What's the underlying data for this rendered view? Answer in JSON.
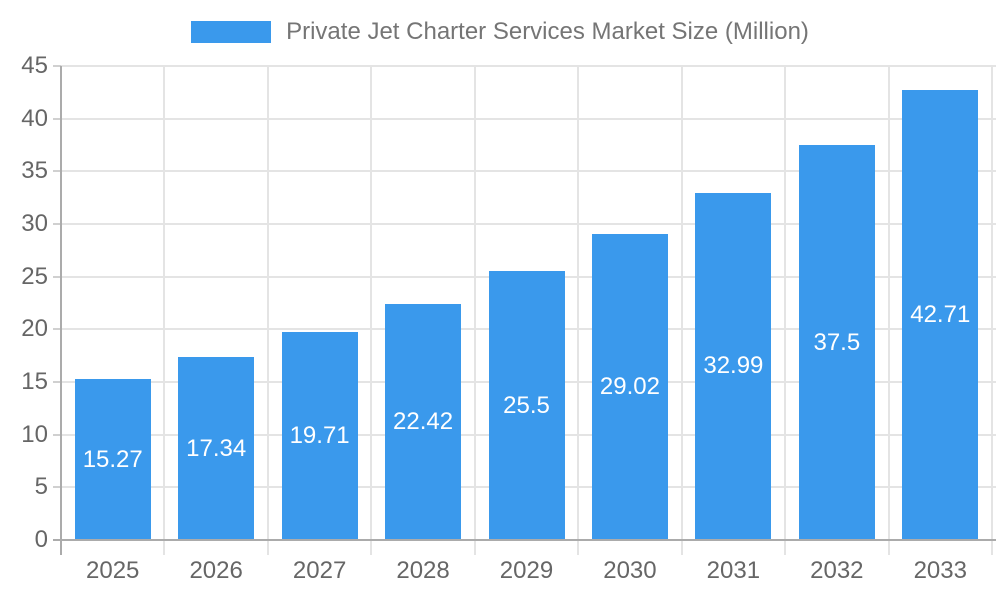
{
  "chart_data": {
    "type": "bar",
    "title": "Private Jet Charter Services Market Size (Million)",
    "categories": [
      "2025",
      "2026",
      "2027",
      "2028",
      "2029",
      "2030",
      "2031",
      "2032",
      "2033"
    ],
    "values": [
      15.27,
      17.34,
      19.71,
      22.42,
      25.5,
      29.02,
      32.99,
      37.5,
      42.71
    ],
    "value_labels": [
      "15.27",
      "17.34",
      "19.71",
      "22.42",
      "25.5",
      "29.02",
      "32.99",
      "37.5",
      "42.71"
    ],
    "xlabel": "",
    "ylabel": "",
    "ylim": [
      0,
      45
    ],
    "y_ticks": [
      0,
      5,
      10,
      15,
      20,
      25,
      30,
      35,
      40,
      45
    ],
    "grid": true,
    "legend_position": "top-center",
    "colors": {
      "bar": "#3A99EC",
      "grid": "#E4E4E4",
      "axis": "#ABABAB",
      "tick": "#D0D0D0",
      "axis_text": "#666666",
      "legend_text": "#757575",
      "bar_label_text": "#FFFFFF",
      "background": "#FFFFFF"
    }
  }
}
